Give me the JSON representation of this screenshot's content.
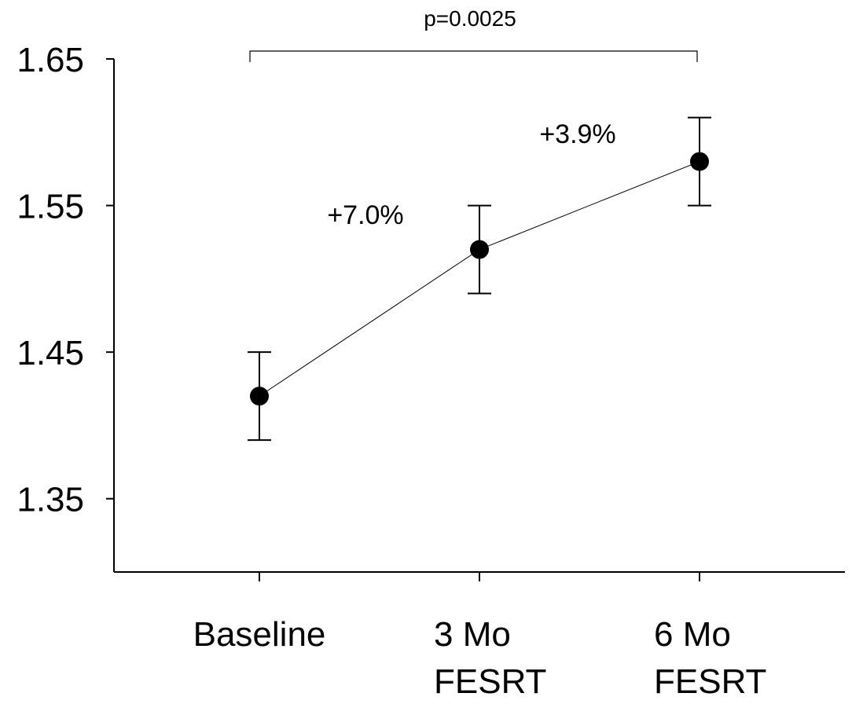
{
  "chart_data": {
    "type": "line",
    "categories": [
      [
        "Baseline"
      ],
      [
        "3 Mo",
        "FESRT"
      ],
      [
        "6 Mo",
        "FESRT"
      ]
    ],
    "values": [
      1.42,
      1.52,
      1.58
    ],
    "error_high": [
      1.45,
      1.55,
      1.61
    ],
    "error_low": [
      1.39,
      1.49,
      1.55
    ],
    "yticks": [
      "1.35",
      "1.45",
      "1.55",
      "1.65"
    ],
    "ylim": [
      1.3,
      1.65
    ],
    "grid": false,
    "annotations": [
      {
        "text": "+7.0%",
        "between": [
          0,
          1
        ]
      },
      {
        "text": "+3.9%",
        "between": [
          1,
          2
        ]
      }
    ],
    "significance": {
      "text": "p=0.0025",
      "from": 0,
      "to": 2
    }
  }
}
